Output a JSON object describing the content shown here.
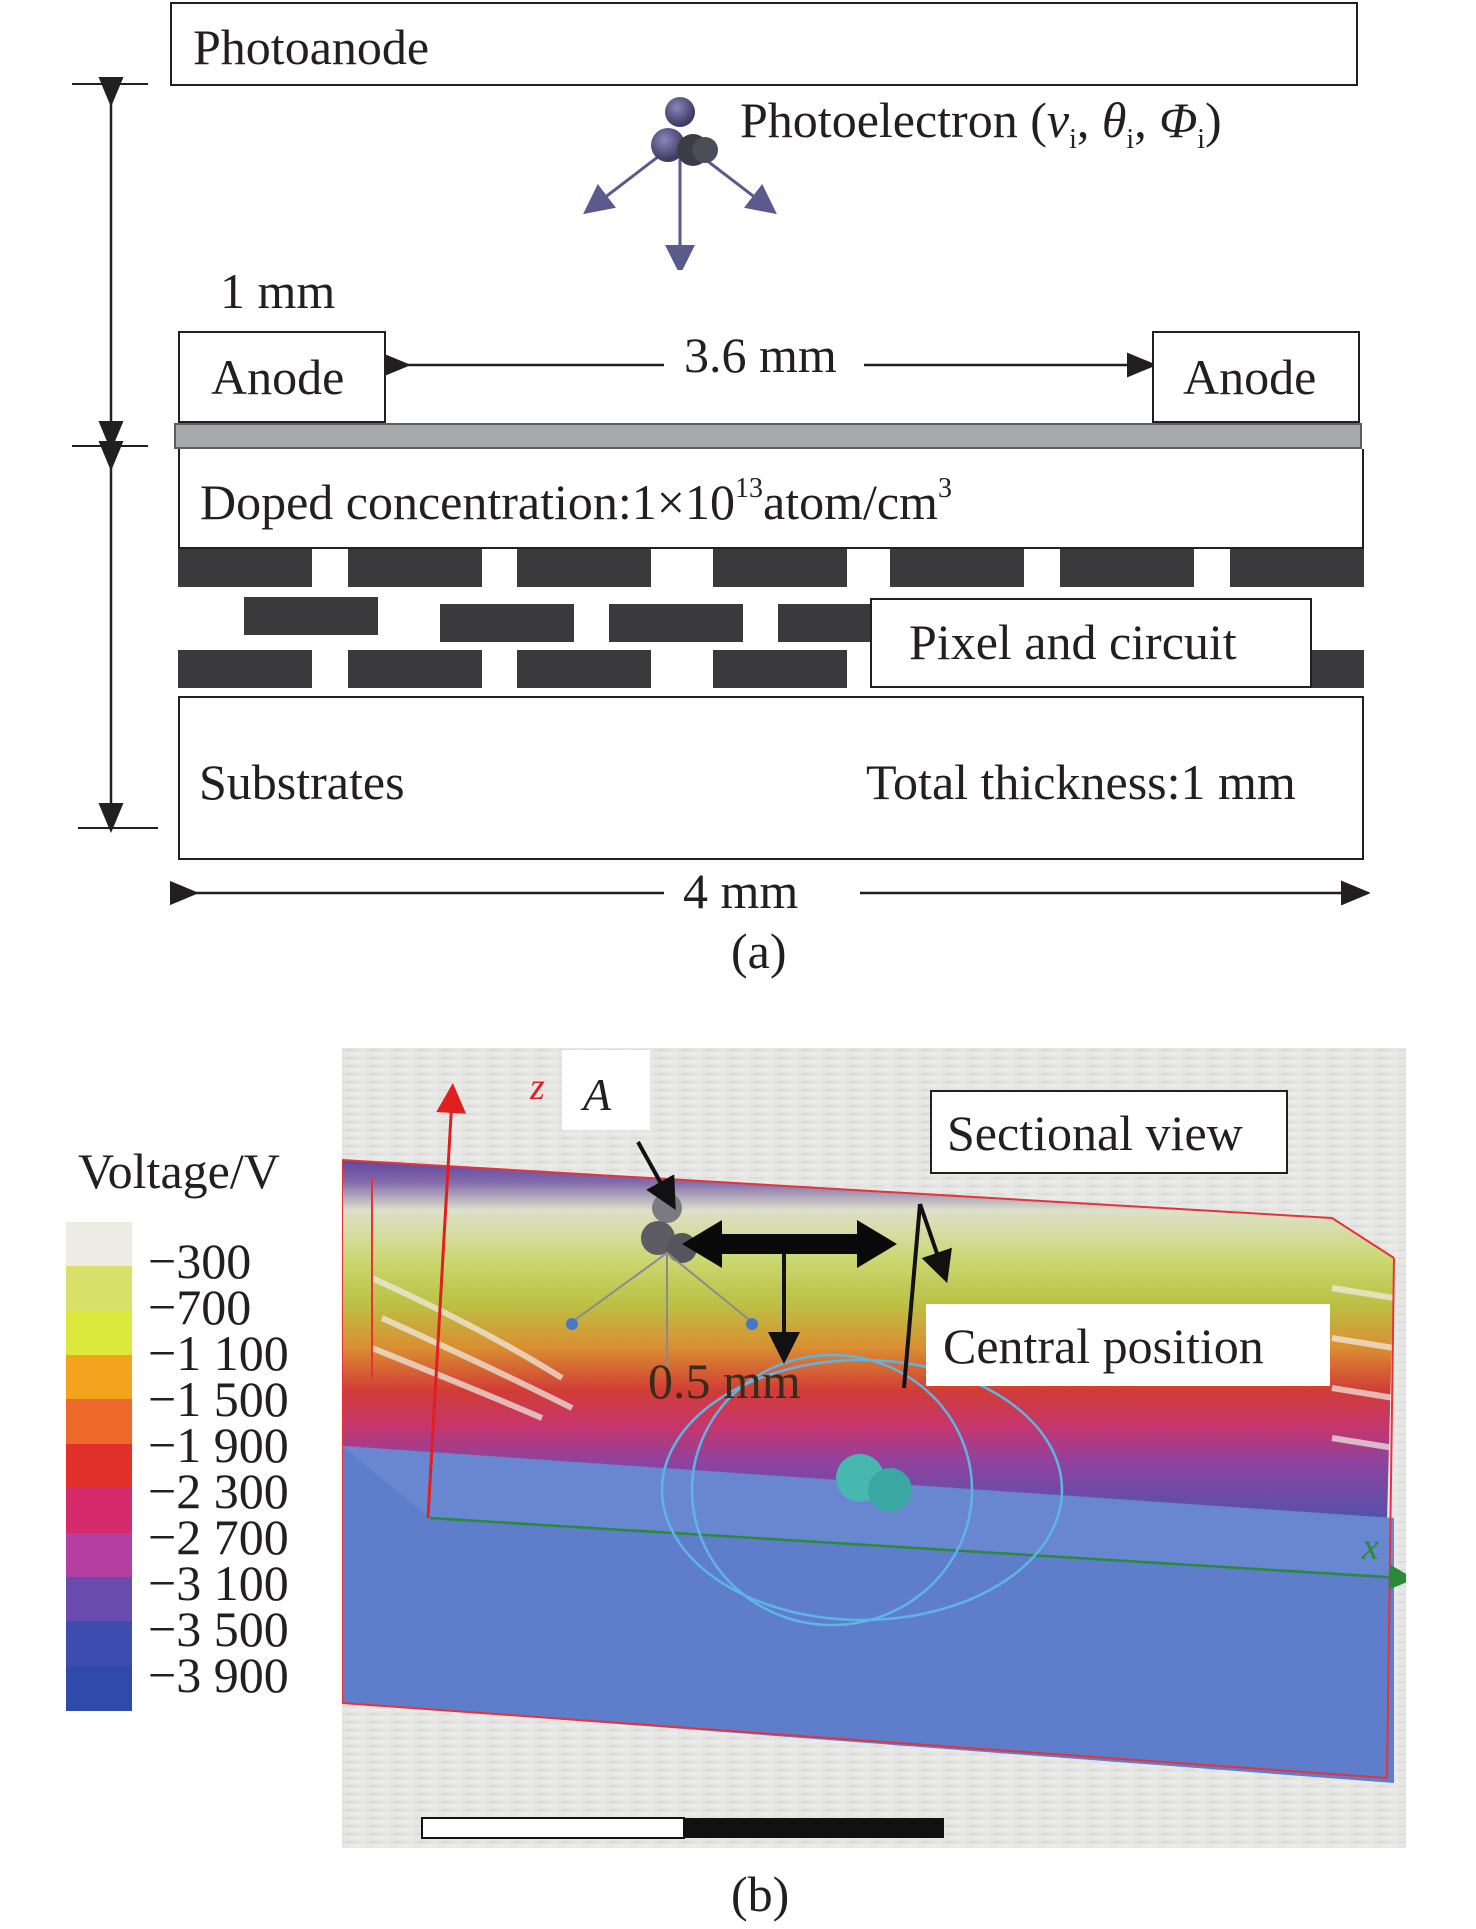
{
  "panel_a": {
    "photoanode": "Photoanode",
    "photoelectron": "Photoelectron (",
    "pe_v": "v",
    "pe_theta": "θ",
    "pe_phi": "Φ",
    "pe_sub": "i",
    "pe_comma": ", ",
    "pe_close": ")",
    "anode_width": "1 mm",
    "anode_left": "Anode",
    "anode_right": "Anode",
    "anode_gap": "3.6 mm",
    "doped_prefix": "Doped concentration:1×10",
    "doped_exp": "13",
    "doped_unit": "atom/cm",
    "doped_unit_exp": "3",
    "pixel_circuit": "Pixel and circuit",
    "substrates": "Substrates",
    "total_thickness": "Total thickness:1 mm",
    "width": "4 mm",
    "caption": "(a)"
  },
  "panel_b": {
    "colorbar_title": "Voltage/V",
    "colorbar_labels": [
      "−300",
      "−700",
      "−1 100",
      "−1 500",
      "−1 900",
      "−2 300",
      "−2 700",
      "−3 100",
      "−3 500",
      "−3 900"
    ],
    "colorbar_colors": [
      "#ecece4",
      "#d9e06a",
      "#dbe83c",
      "#f2a41e",
      "#ee6a2a",
      "#e13029",
      "#d62b6a",
      "#b43fa3",
      "#6a4bae",
      "#3e4cb0",
      "#2f4aa8"
    ],
    "axis_z": "z",
    "axis_x": "x",
    "point_label": "A",
    "sectional_view": "Sectional view",
    "central_position": "Central position",
    "distance": "0.5 mm",
    "caption": "(b)"
  }
}
